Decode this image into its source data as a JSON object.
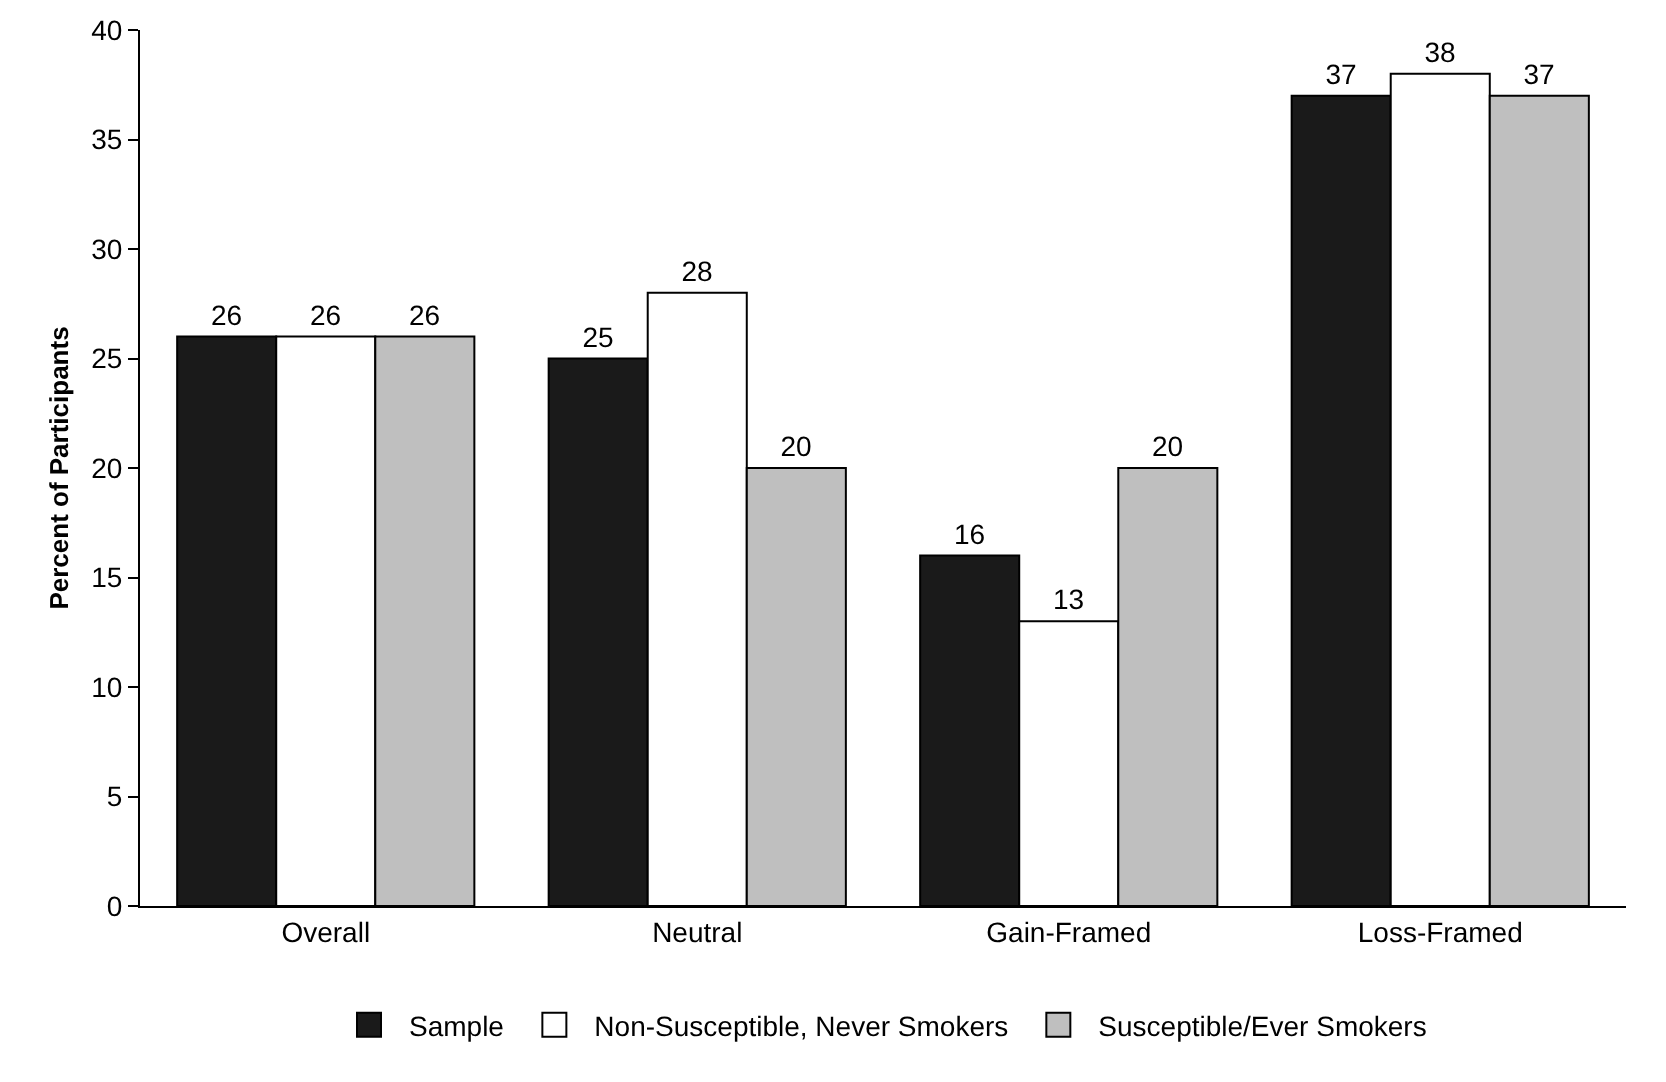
{
  "chart_data": {
    "type": "bar",
    "ylabel": "Percent of Participants",
    "categories": [
      "Overall",
      "Neutral",
      "Gain-Framed",
      "Loss-Framed"
    ],
    "series": [
      {
        "name": "Sample",
        "color": "#1a1a1a",
        "values": [
          26,
          25,
          16,
          37
        ]
      },
      {
        "name": "Non-Susceptible, Never Smokers",
        "color": "#ffffff",
        "values": [
          26,
          28,
          13,
          38
        ]
      },
      {
        "name": "Susceptible/Ever Smokers",
        "color": "#bfbfbf",
        "values": [
          26,
          20,
          20,
          37
        ]
      }
    ],
    "ylim": [
      0,
      40
    ],
    "yticks": [
      0,
      5,
      10,
      15,
      20,
      25,
      30,
      35,
      40
    ],
    "grid": false,
    "legend": "bottom",
    "data_labels": true
  }
}
